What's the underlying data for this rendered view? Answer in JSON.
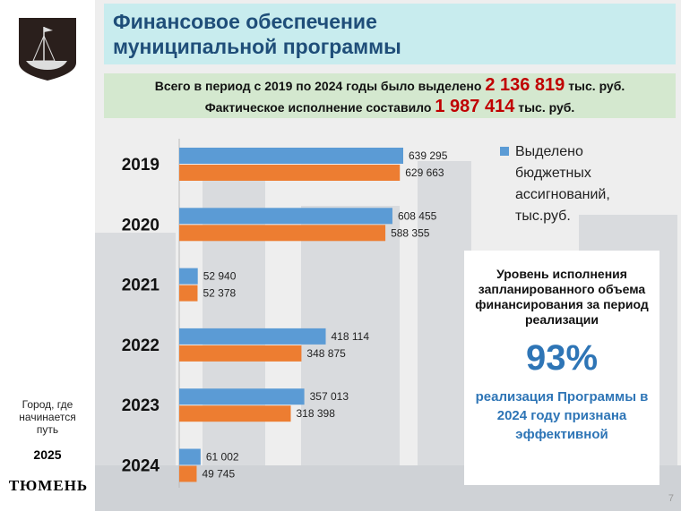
{
  "title": [
    "Финансовое обеспечение",
    "муниципальной программы"
  ],
  "summary": {
    "line1_pre": "Всего в период с 2019 по 2024 годы было выделено",
    "line1_val": "2 136 819",
    "line1_post": "тыс. руб.",
    "line2_pre": "Фактическое исполнение составило",
    "line2_val": "1 987 414",
    "line2_post": "тыс. руб."
  },
  "sidebar": {
    "slogan": "Город, где начинается путь",
    "year": "2025",
    "city": "ТЮМЕНЬ",
    "logo_icon": "tyumen-coat-of-arms-boat"
  },
  "box": {
    "text": "Уровень исполнения запланированного объема финансирования за период реализации",
    "percent": "93%",
    "eval": "реализация Программы в 2024 году признана эффективной"
  },
  "page_number": "7",
  "chart_data": {
    "type": "bar",
    "orientation": "horizontal",
    "categories": [
      "2019",
      "2020",
      "2021",
      "2022",
      "2023",
      "2024"
    ],
    "series": [
      {
        "name": "Выделено бюджетных ассигнований, тыс.руб.",
        "color": "#5b9bd5",
        "values": [
          639295,
          608455,
          52940,
          418114,
          357013,
          61002
        ],
        "labels": [
          "639 295",
          "608 455",
          "52 940",
          "418 114",
          "357 013",
          "61 002"
        ]
      },
      {
        "color": "#ed7d31",
        "values": [
          629663,
          588355,
          52378,
          348875,
          318398,
          49745
        ],
        "labels": [
          "629 663",
          "588 355",
          "52 378",
          "348 875",
          "318 398",
          "49 745"
        ]
      }
    ],
    "legend": "right",
    "grid": false
  }
}
